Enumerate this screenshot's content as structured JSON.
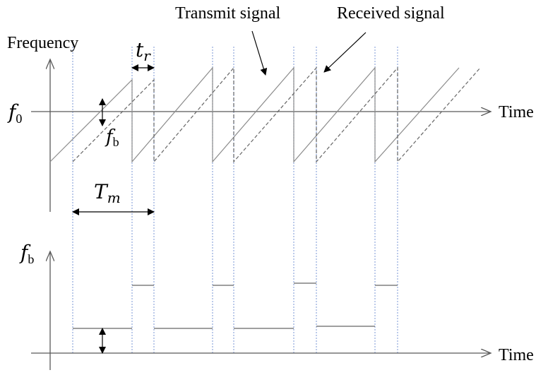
{
  "labels": {
    "frequency": "Frequency",
    "time_top": "Time",
    "time_bottom": "Time",
    "transmit_signal": "Transmit signal",
    "received_signal": "Received signal"
  },
  "symbols": {
    "f0_main": "f",
    "f0_sub": "0",
    "tr_main": "t",
    "tr_sub": "r",
    "fb_top_main": "f",
    "fb_top_sub": "b",
    "tm_main": "T",
    "tm_sub": "m",
    "fb_axis_main": "f",
    "fb_axis_sub": "b"
  },
  "colors": {
    "axis": "#595959",
    "transmit": "#8c8c8c",
    "received": "#666666",
    "guides": "#8fa8dc",
    "annot": "#000000"
  }
}
